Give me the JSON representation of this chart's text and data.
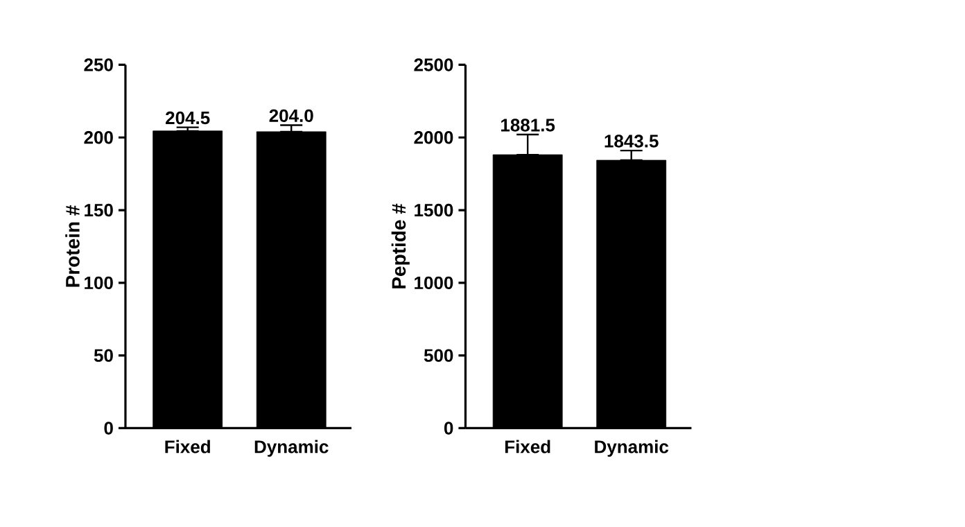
{
  "chart_data": [
    {
      "type": "bar",
      "ylabel": "Protein #",
      "categories": [
        "Fixed",
        "Dynamic"
      ],
      "values": [
        204.5,
        204.0
      ],
      "value_labels": [
        "204.5",
        "204.0"
      ],
      "errors": [
        [
          204.5,
          207
        ],
        [
          204.0,
          208.5
        ]
      ],
      "color": "#000000",
      "ylim": [
        0,
        250
      ],
      "yticks": [
        0,
        50,
        100,
        150,
        200,
        250
      ]
    },
    {
      "type": "bar",
      "ylabel": "Peptide #",
      "categories": [
        "Fixed",
        "Dynamic"
      ],
      "values": [
        1881.5,
        1843.5
      ],
      "value_labels": [
        "1881.5",
        "1843.5"
      ],
      "errors": [
        [
          1881.5,
          2020
        ],
        [
          1843.5,
          1910
        ]
      ],
      "color": "#000000",
      "ylim": [
        0,
        2500
      ],
      "yticks": [
        0,
        500,
        1000,
        1500,
        2000,
        2500
      ]
    }
  ]
}
